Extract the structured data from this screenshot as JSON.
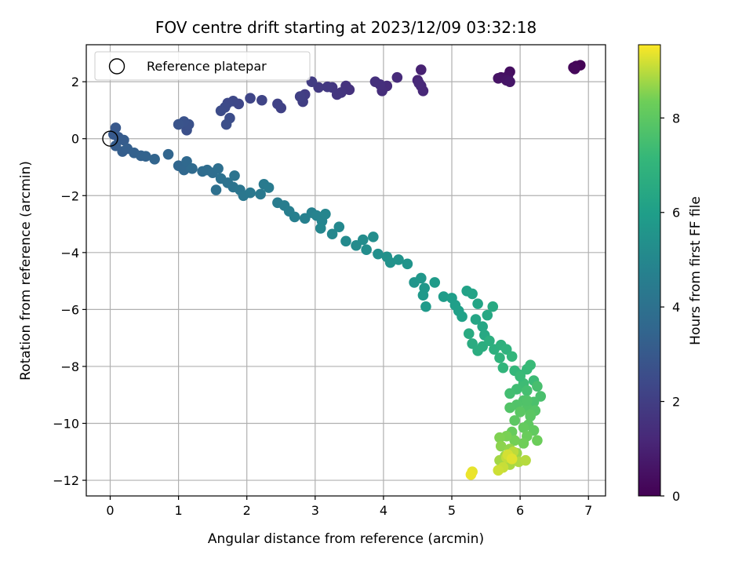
{
  "chart_data": {
    "type": "scatter",
    "title": "FOV centre drift starting at 2023/12/09 03:32:18",
    "xlabel": "Angular distance from reference (arcmin)",
    "ylabel": "Rotation from reference (arcmin)",
    "xlim": [
      -0.35,
      7.25
    ],
    "ylim": [
      -12.55,
      3.3
    ],
    "xticks": [
      0,
      1,
      2,
      3,
      4,
      5,
      6,
      7
    ],
    "yticks": [
      -12,
      -10,
      -8,
      -6,
      -4,
      -2,
      0,
      2
    ],
    "grid": true,
    "colormap": "viridis",
    "colorbar": {
      "label": "Hours from first FF file",
      "range": [
        0,
        9.55
      ],
      "ticks": [
        0,
        2,
        4,
        6,
        8
      ]
    },
    "legend": {
      "position": "top-left",
      "entries": [
        {
          "label": "Reference platepar",
          "marker": "open-circle"
        }
      ]
    },
    "reference_point": {
      "x": 0,
      "y": 0
    },
    "points": [
      [
        6.88,
        2.58,
        0.05
      ],
      [
        6.82,
        2.55,
        0.1
      ],
      [
        6.78,
        2.5,
        0.15
      ],
      [
        6.8,
        2.45,
        0.2
      ],
      [
        5.85,
        2.35,
        0.4
      ],
      [
        5.82,
        2.2,
        0.45
      ],
      [
        5.72,
        2.15,
        0.5
      ],
      [
        5.68,
        2.12,
        0.55
      ],
      [
        5.8,
        2.05,
        0.6
      ],
      [
        5.85,
        2.0,
        0.65
      ],
      [
        4.55,
        2.42,
        1.0
      ],
      [
        4.5,
        2.05,
        1.1
      ],
      [
        4.55,
        1.85,
        1.15
      ],
      [
        4.58,
        1.68,
        1.2
      ],
      [
        4.52,
        1.95,
        1.25
      ],
      [
        4.2,
        2.15,
        1.3
      ],
      [
        4.05,
        1.85,
        1.35
      ],
      [
        3.98,
        1.68,
        1.4
      ],
      [
        3.95,
        1.9,
        1.45
      ],
      [
        3.88,
        2.0,
        1.5
      ],
      [
        3.5,
        1.72,
        1.55
      ],
      [
        3.45,
        1.85,
        1.6
      ],
      [
        3.38,
        1.62,
        1.65
      ],
      [
        3.32,
        1.55,
        1.7
      ],
      [
        3.25,
        1.8,
        1.75
      ],
      [
        3.18,
        1.82,
        1.8
      ],
      [
        3.05,
        1.8,
        1.85
      ],
      [
        2.95,
        2.0,
        1.9
      ],
      [
        2.85,
        1.55,
        1.95
      ],
      [
        2.82,
        1.3,
        2.0
      ],
      [
        2.78,
        1.48,
        2.05
      ],
      [
        2.5,
        1.08,
        2.1
      ],
      [
        2.45,
        1.22,
        2.15
      ],
      [
        2.22,
        1.35,
        2.2
      ],
      [
        2.05,
        1.42,
        2.25
      ],
      [
        1.88,
        1.22,
        2.3
      ],
      [
        1.8,
        1.32,
        2.35
      ],
      [
        1.72,
        1.25,
        2.4
      ],
      [
        1.68,
        1.1,
        2.45
      ],
      [
        1.62,
        0.98,
        2.5
      ],
      [
        1.75,
        0.72,
        2.55
      ],
      [
        1.7,
        0.5,
        2.6
      ],
      [
        1.12,
        0.3,
        2.65
      ],
      [
        1.15,
        0.5,
        2.7
      ],
      [
        1.08,
        0.6,
        2.75
      ],
      [
        1.0,
        0.5,
        2.8
      ],
      [
        0.08,
        0.38,
        2.95
      ],
      [
        0.05,
        0.15,
        3.0
      ],
      [
        0.12,
        0.05,
        3.05
      ],
      [
        0.2,
        -0.05,
        3.1
      ],
      [
        0.08,
        -0.25,
        3.15
      ],
      [
        0.18,
        -0.45,
        3.2
      ],
      [
        0.25,
        -0.35,
        3.25
      ],
      [
        0.35,
        -0.5,
        3.3
      ],
      [
        0.45,
        -0.6,
        3.35
      ],
      [
        0.52,
        -0.62,
        3.4
      ],
      [
        0.65,
        -0.72,
        3.45
      ],
      [
        0.85,
        -0.55,
        3.5
      ],
      [
        1.0,
        -0.95,
        3.55
      ],
      [
        1.08,
        -1.1,
        3.6
      ],
      [
        1.12,
        -0.8,
        3.65
      ],
      [
        1.2,
        -1.05,
        3.7
      ],
      [
        1.35,
        -1.15,
        3.75
      ],
      [
        1.42,
        -1.1,
        3.8
      ],
      [
        1.5,
        -1.2,
        3.85
      ],
      [
        1.58,
        -1.05,
        3.9
      ],
      [
        1.55,
        -1.8,
        3.95
      ],
      [
        1.62,
        -1.4,
        4.0
      ],
      [
        1.72,
        -1.55,
        4.05
      ],
      [
        1.8,
        -1.7,
        4.1
      ],
      [
        1.82,
        -1.3,
        4.15
      ],
      [
        1.9,
        -1.8,
        4.2
      ],
      [
        1.95,
        -2.0,
        4.25
      ],
      [
        2.05,
        -1.9,
        4.3
      ],
      [
        2.2,
        -1.95,
        4.35
      ],
      [
        2.25,
        -1.6,
        4.4
      ],
      [
        2.32,
        -1.72,
        4.45
      ],
      [
        2.45,
        -2.25,
        4.5
      ],
      [
        2.55,
        -2.35,
        4.55
      ],
      [
        2.62,
        -2.55,
        4.6
      ],
      [
        2.7,
        -2.75,
        4.65
      ],
      [
        2.85,
        -2.8,
        4.7
      ],
      [
        2.95,
        -2.6,
        4.75
      ],
      [
        3.02,
        -2.7,
        4.8
      ],
      [
        3.1,
        -2.9,
        4.85
      ],
      [
        3.15,
        -2.65,
        4.9
      ],
      [
        3.08,
        -3.15,
        4.95
      ],
      [
        3.25,
        -3.35,
        5.0
      ],
      [
        3.35,
        -3.1,
        5.05
      ],
      [
        3.45,
        -3.6,
        5.1
      ],
      [
        3.6,
        -3.75,
        5.15
      ],
      [
        3.7,
        -3.55,
        5.2
      ],
      [
        3.75,
        -3.9,
        5.25
      ],
      [
        3.85,
        -3.45,
        5.3
      ],
      [
        3.92,
        -4.05,
        5.35
      ],
      [
        4.05,
        -4.15,
        5.4
      ],
      [
        4.1,
        -4.35,
        5.45
      ],
      [
        4.22,
        -4.25,
        5.5
      ],
      [
        4.35,
        -4.4,
        5.55
      ],
      [
        4.45,
        -5.05,
        5.6
      ],
      [
        4.55,
        -4.9,
        5.65
      ],
      [
        4.6,
        -5.25,
        5.7
      ],
      [
        4.58,
        -5.5,
        5.75
      ],
      [
        4.62,
        -5.9,
        5.8
      ],
      [
        4.75,
        -5.05,
        5.85
      ],
      [
        4.88,
        -5.55,
        5.9
      ],
      [
        5.0,
        -5.6,
        5.95
      ],
      [
        5.05,
        -5.85,
        6.0
      ],
      [
        5.1,
        -6.05,
        6.05
      ],
      [
        5.15,
        -6.25,
        6.1
      ],
      [
        5.22,
        -5.35,
        6.15
      ],
      [
        5.3,
        -5.45,
        6.2
      ],
      [
        5.38,
        -5.8,
        6.25
      ],
      [
        5.35,
        -6.35,
        6.3
      ],
      [
        5.45,
        -6.6,
        6.35
      ],
      [
        5.52,
        -6.2,
        6.4
      ],
      [
        5.48,
        -6.9,
        6.45
      ],
      [
        5.6,
        -5.9,
        6.5
      ],
      [
        5.25,
        -6.85,
        6.55
      ],
      [
        5.3,
        -7.2,
        6.6
      ],
      [
        5.38,
        -7.45,
        6.65
      ],
      [
        5.45,
        -7.3,
        6.7
      ],
      [
        5.55,
        -7.1,
        6.75
      ],
      [
        5.62,
        -7.4,
        6.8
      ],
      [
        5.72,
        -7.25,
        6.85
      ],
      [
        5.8,
        -7.4,
        6.9
      ],
      [
        5.7,
        -7.7,
        6.95
      ],
      [
        5.75,
        -8.05,
        7.0
      ],
      [
        5.88,
        -7.65,
        7.05
      ],
      [
        5.92,
        -8.15,
        7.1
      ],
      [
        6.0,
        -8.3,
        7.15
      ],
      [
        6.1,
        -8.1,
        7.2
      ],
      [
        6.15,
        -7.95,
        7.25
      ],
      [
        6.2,
        -8.5,
        7.3
      ],
      [
        6.05,
        -8.6,
        7.35
      ],
      [
        5.95,
        -8.8,
        7.4
      ],
      [
        5.85,
        -8.95,
        7.45
      ],
      [
        6.1,
        -8.85,
        7.5
      ],
      [
        6.25,
        -8.7,
        7.55
      ],
      [
        6.3,
        -9.05,
        7.6
      ],
      [
        6.2,
        -9.25,
        7.65
      ],
      [
        6.05,
        -9.2,
        7.7
      ],
      [
        5.95,
        -9.35,
        7.75
      ],
      [
        6.1,
        -9.45,
        7.8
      ],
      [
        6.22,
        -9.55,
        7.85
      ],
      [
        6.15,
        -9.75,
        7.9
      ],
      [
        6.0,
        -9.6,
        7.95
      ],
      [
        5.92,
        -9.9,
        8.0
      ],
      [
        6.12,
        -10.05,
        8.05
      ],
      [
        6.2,
        -10.25,
        8.1
      ],
      [
        6.05,
        -10.15,
        8.15
      ],
      [
        5.88,
        -10.3,
        8.2
      ],
      [
        6.1,
        -10.45,
        8.25
      ],
      [
        6.25,
        -10.6,
        8.3
      ],
      [
        6.05,
        -10.7,
        8.35
      ],
      [
        5.92,
        -10.6,
        8.4
      ],
      [
        5.8,
        -10.45,
        8.45
      ],
      [
        5.7,
        -10.5,
        8.5
      ],
      [
        5.72,
        -10.8,
        8.6
      ],
      [
        5.85,
        -10.9,
        8.65
      ],
      [
        5.95,
        -11.05,
        8.7
      ],
      [
        5.78,
        -11.15,
        8.75
      ],
      [
        5.7,
        -11.3,
        8.8
      ],
      [
        5.85,
        -11.45,
        8.85
      ],
      [
        5.98,
        -11.35,
        8.9
      ],
      [
        6.08,
        -11.3,
        8.95
      ],
      [
        5.9,
        -11.0,
        9.0
      ],
      [
        5.8,
        -11.2,
        9.05
      ],
      [
        5.75,
        -11.55,
        9.1
      ],
      [
        5.68,
        -11.65,
        9.15
      ],
      [
        5.82,
        -11.1,
        9.2
      ],
      [
        5.88,
        -11.25,
        9.3
      ],
      [
        5.3,
        -11.7,
        9.35
      ],
      [
        5.28,
        -11.8,
        9.4
      ],
      [
        6.15,
        -9.7,
        7.95
      ],
      [
        6.1,
        -9.2,
        7.75
      ],
      [
        5.85,
        -9.45,
        7.8
      ],
      [
        6.0,
        -8.35,
        7.25
      ]
    ]
  }
}
